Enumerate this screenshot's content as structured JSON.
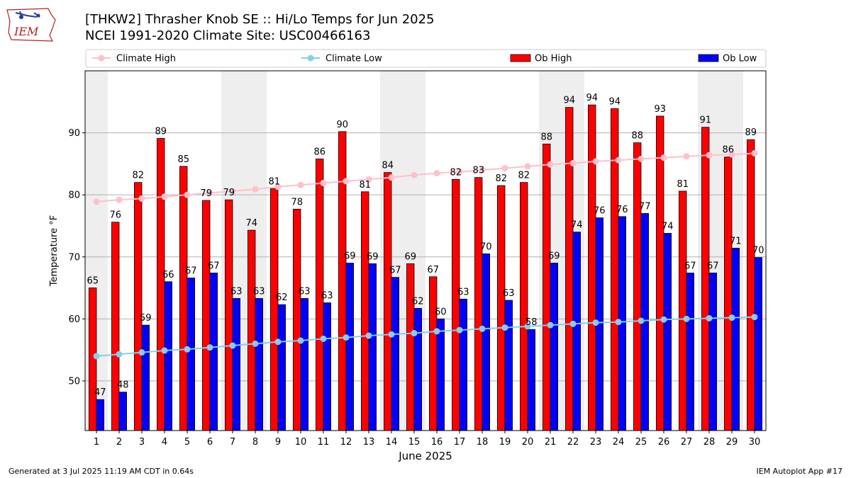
{
  "header": {
    "title_line1": "[THKW2] Thrasher Knob SE :: Hi/Lo Temps for Jun 2025",
    "title_line2": "NCEI 1991-2020 Climate Site: USC00466163",
    "logo_text": "IEM"
  },
  "footer": {
    "left": "Generated at 3 Jul 2025 11:19 AM CDT in 0.64s",
    "right": "IEM Autoplot App #17"
  },
  "colors": {
    "ob_high": "#ff0000",
    "ob_low": "#0000ff",
    "climate_high": "#ffc0cb",
    "climate_low": "#87ceeb",
    "weekend_shade": "#eeeeee"
  },
  "chart_data": {
    "type": "bar",
    "xlabel": "June 2025",
    "ylabel": "Temperature °F",
    "ylim": [
      42,
      100
    ],
    "yticks": [
      50,
      60,
      70,
      80,
      90
    ],
    "grid": "horizontal",
    "legend_position": "top",
    "shaded_days": [
      1,
      7,
      8,
      14,
      15,
      21,
      22,
      28,
      29
    ],
    "categories": [
      "1",
      "2",
      "3",
      "4",
      "5",
      "6",
      "7",
      "8",
      "9",
      "10",
      "11",
      "12",
      "13",
      "14",
      "15",
      "16",
      "17",
      "18",
      "19",
      "20",
      "21",
      "22",
      "23",
      "24",
      "25",
      "26",
      "27",
      "28",
      "29",
      "30"
    ],
    "series": [
      {
        "name": "Climate High",
        "kind": "line",
        "values": [
          78.9,
          79.2,
          79.4,
          79.7,
          80.0,
          80.3,
          80.6,
          80.9,
          81.3,
          81.6,
          81.9,
          82.2,
          82.5,
          82.8,
          83.2,
          83.5,
          83.7,
          84.0,
          84.3,
          84.6,
          84.9,
          85.1,
          85.4,
          85.6,
          85.8,
          86.0,
          86.2,
          86.4,
          86.5,
          86.7
        ]
      },
      {
        "name": "Climate Low",
        "kind": "line",
        "values": [
          54.0,
          54.3,
          54.6,
          54.9,
          55.1,
          55.4,
          55.7,
          56.0,
          56.3,
          56.5,
          56.8,
          57.0,
          57.3,
          57.5,
          57.7,
          58.0,
          58.2,
          58.4,
          58.6,
          58.8,
          59.0,
          59.2,
          59.4,
          59.5,
          59.7,
          59.9,
          60.0,
          60.1,
          60.2,
          60.3
        ]
      },
      {
        "name": "Ob High",
        "kind": "bar",
        "values": [
          65,
          76,
          82,
          89,
          85,
          79,
          79,
          74,
          81,
          78,
          86,
          90,
          81,
          84,
          69,
          67,
          82,
          83,
          82,
          82,
          88,
          94,
          94,
          94,
          88,
          93,
          81,
          91,
          86,
          89
        ],
        "plot_values": [
          65.0,
          75.6,
          82.0,
          89.1,
          84.6,
          79.1,
          79.2,
          74.3,
          81.0,
          77.7,
          85.8,
          90.2,
          80.5,
          83.6,
          68.9,
          66.8,
          82.5,
          82.8,
          81.5,
          82.0,
          88.2,
          94.1,
          94.5,
          93.9,
          88.4,
          92.7,
          80.6,
          90.9,
          86.1,
          88.9
        ]
      },
      {
        "name": "Ob Low",
        "kind": "bar",
        "values": [
          47,
          48,
          59,
          66,
          67,
          67,
          63,
          63,
          62,
          63,
          63,
          69,
          69,
          67,
          62,
          60,
          63,
          70,
          63,
          58,
          69,
          74,
          76,
          76,
          77,
          74,
          67,
          67,
          71,
          70
        ],
        "plot_values": [
          47.0,
          48.2,
          59.0,
          66.0,
          66.6,
          67.4,
          63.3,
          63.3,
          62.3,
          63.3,
          62.6,
          69.0,
          68.9,
          66.7,
          61.7,
          60.0,
          63.2,
          70.5,
          63.0,
          58.3,
          69.0,
          74.0,
          76.3,
          76.5,
          77.0,
          73.8,
          67.4,
          67.4,
          71.4,
          69.9
        ]
      }
    ]
  }
}
